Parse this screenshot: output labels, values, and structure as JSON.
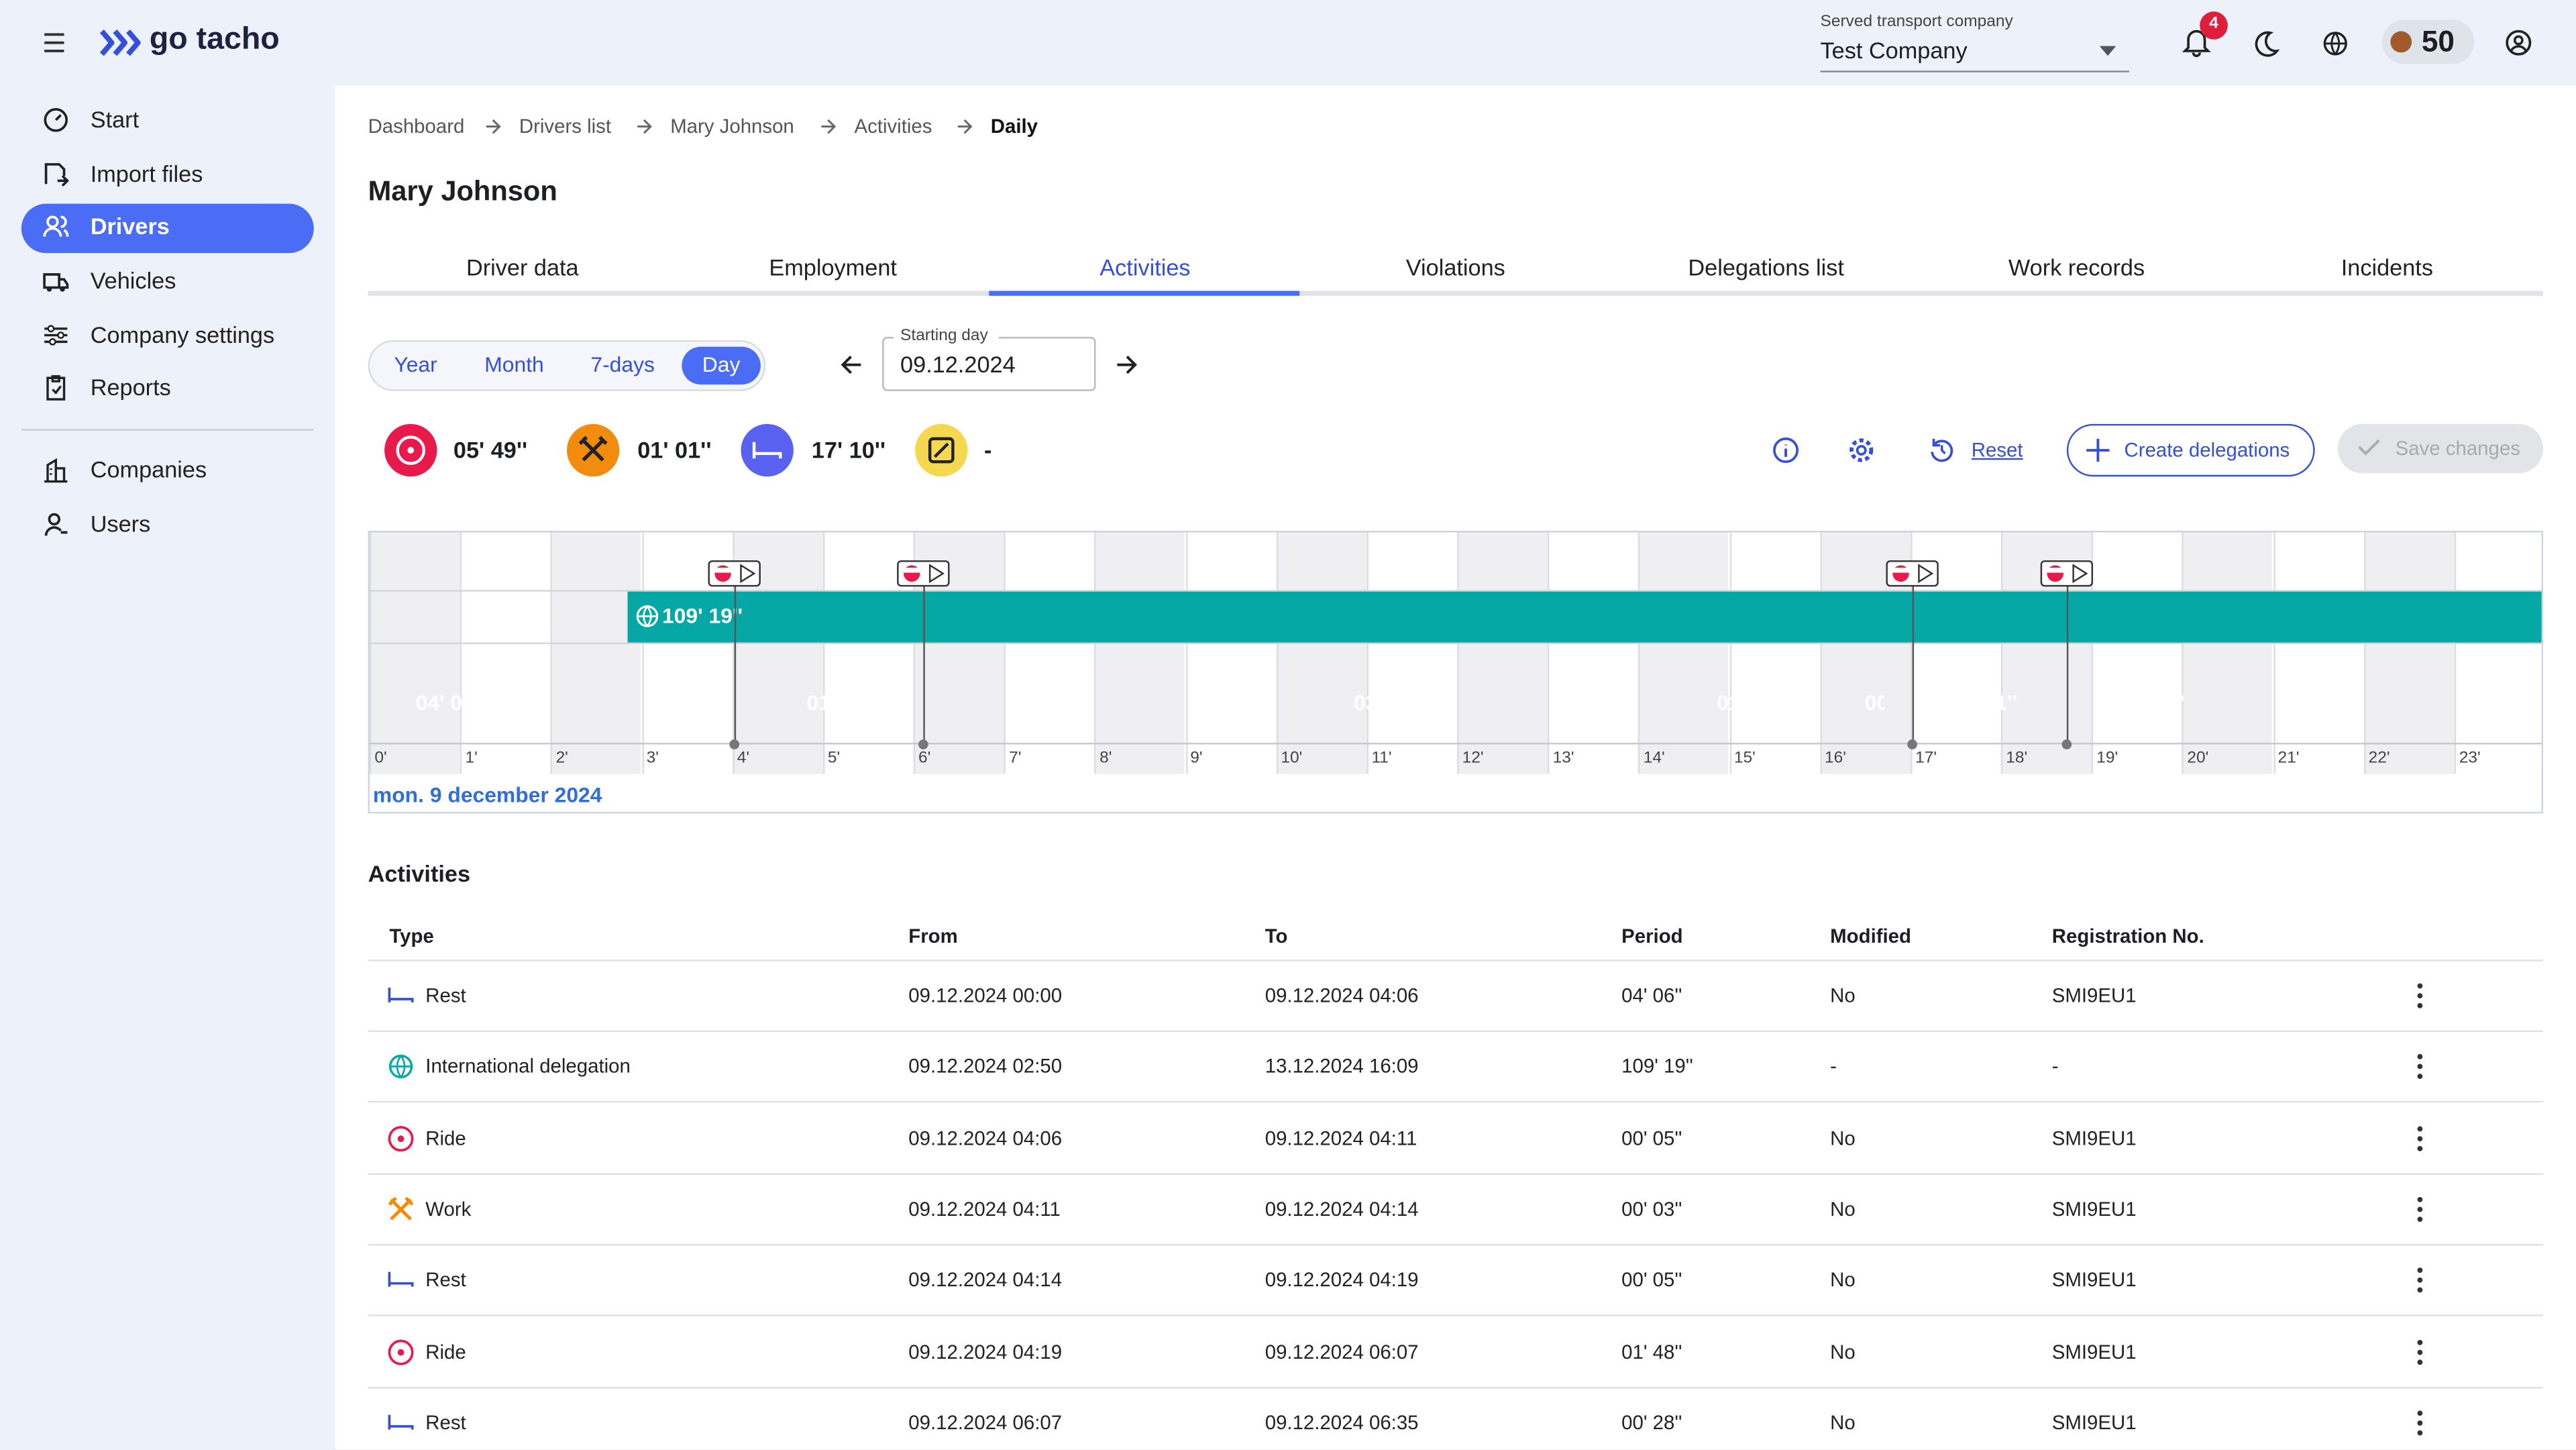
{
  "header": {
    "brand": "go tacho",
    "company_label": "Served transport company",
    "company": "Test Company",
    "notifications": "4",
    "coins": "50"
  },
  "sidebar": {
    "items": [
      "Start",
      "Import files",
      "Drivers",
      "Vehicles",
      "Company settings",
      "Reports",
      "Companies",
      "Users"
    ]
  },
  "breadcrumb": [
    "Dashboard",
    "Drivers list",
    "Mary Johnson",
    "Activities",
    "Daily"
  ],
  "page": {
    "title": "Mary Johnson",
    "tabs": [
      "Driver data",
      "Employment",
      "Activities",
      "Violations",
      "Delegations list",
      "Work records",
      "Incidents"
    ],
    "periods": [
      "Year",
      "Month",
      "7-days",
      "Day"
    ],
    "starting_day_label": "Starting day",
    "starting_day": "09.12.2024"
  },
  "summary": {
    "ride": "05' 49''",
    "work": "01' 01''",
    "rest": "17' 10''",
    "availability": "-"
  },
  "actions": {
    "reset": "Reset",
    "create": "Create delegations",
    "save": "Save changes"
  },
  "timeline": {
    "delegation": "109' 19''",
    "segments": [
      "04' 06''",
      "01' 48''",
      "03' 59''",
      "01' 11",
      "00",
      "01' 51''",
      "05' 17''"
    ],
    "hours": [
      "0'",
      "1'",
      "2'",
      "3'",
      "4'",
      "5'",
      "6'",
      "7'",
      "8'",
      "9'",
      "10'",
      "11'",
      "12'",
      "13'",
      "14'",
      "15'",
      "16'",
      "17'",
      "18'",
      "19'",
      "20'",
      "21'",
      "22'",
      "23'"
    ],
    "date": "mon. 9 december 2024"
  },
  "table": {
    "title": "Activities",
    "columns": [
      "Type",
      "From",
      "To",
      "Period",
      "Modified",
      "Registration No."
    ],
    "rows": [
      [
        "Rest",
        "09.12.2024 00:00",
        "09.12.2024 04:06",
        "04' 06''",
        "No",
        "SMI9EU1"
      ],
      [
        "International delegation",
        "09.12.2024 02:50",
        "13.12.2024 16:09",
        "109' 19''",
        "-",
        "-"
      ],
      [
        "Ride",
        "09.12.2024 04:06",
        "09.12.2024 04:11",
        "00' 05''",
        "No",
        "SMI9EU1"
      ],
      [
        "Work",
        "09.12.2024 04:11",
        "09.12.2024 04:14",
        "00' 03''",
        "No",
        "SMI9EU1"
      ],
      [
        "Rest",
        "09.12.2024 04:14",
        "09.12.2024 04:19",
        "00' 05''",
        "No",
        "SMI9EU1"
      ],
      [
        "Ride",
        "09.12.2024 04:19",
        "09.12.2024 06:07",
        "01' 48''",
        "No",
        "SMI9EU1"
      ],
      [
        "Rest",
        "09.12.2024 06:07",
        "09.12.2024 06:35",
        "00' 28''",
        "No",
        "SMI9EU1"
      ]
    ]
  }
}
